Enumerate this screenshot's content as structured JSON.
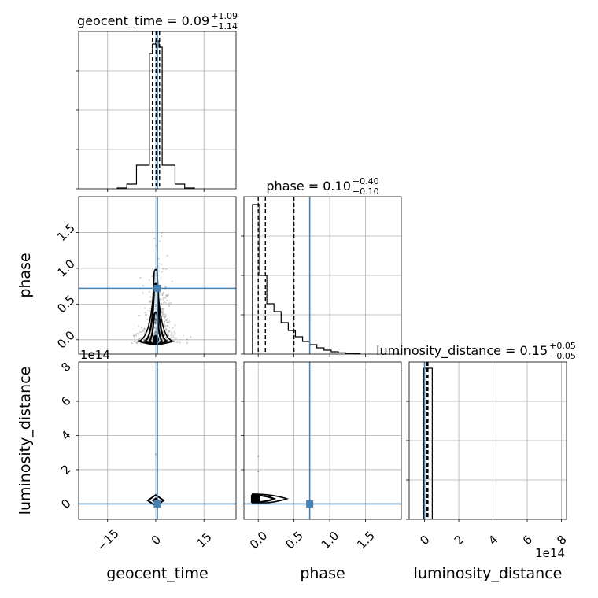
{
  "chart_data": {
    "type": "corner",
    "parameters": [
      "geocent_time",
      "phase",
      "luminosity_distance"
    ],
    "truth": {
      "geocent_time": 0.5,
      "phase": 0.72,
      "luminosity_distance": 0.0
    },
    "truth_color": "#4682b4",
    "grid": true,
    "offsets": {
      "luminosity_distance": "1e14"
    },
    "titles": [
      {
        "param": "geocent_time",
        "main": "geocent_time = 0.09",
        "plus": "+1.09",
        "minus": "−1.14"
      },
      {
        "param": "phase",
        "main": "phase = 0.10",
        "plus": "+0.40",
        "minus": "−0.10"
      },
      {
        "param": "luminosity_distance",
        "main": "luminosity_distance = 0.15",
        "plus": "+0.05",
        "minus": "−0.05"
      }
    ],
    "axes": {
      "geocent_time": {
        "label": "geocent_time",
        "range": [
          -24,
          25
        ],
        "ticks": [
          -15,
          0,
          15
        ],
        "tick_labels": [
          "−15",
          "0",
          "15"
        ]
      },
      "phase": {
        "label": "phase",
        "range": [
          -0.2,
          2.0
        ],
        "ticks": [
          0.0,
          0.5,
          1.0,
          1.5
        ],
        "tick_labels": [
          "0.0",
          "0.5",
          "1.0",
          "1.5"
        ]
      },
      "luminosity_distance": {
        "label": "luminosity_distance",
        "range": [
          -0.9,
          8.3
        ],
        "ticks": [
          0,
          2,
          4,
          6,
          8
        ],
        "tick_labels": [
          "0",
          "2",
          "4",
          "6",
          "8"
        ]
      }
    },
    "hist_geocent_time": {
      "edges": [
        -12,
        -9,
        -6,
        -4,
        -2,
        -1,
        0,
        1,
        2,
        4,
        6,
        9,
        12
      ],
      "counts": [
        0.005,
        0.03,
        0.15,
        0.15,
        0.86,
        0.92,
        0.94,
        0.9,
        0.15,
        0.15,
        0.03,
        0.005
      ],
      "quantiles": [
        -1.05,
        0.09,
        1.18
      ]
    },
    "hist_phase": {
      "edges": [
        -0.08,
        0.02,
        0.12,
        0.22,
        0.32,
        0.42,
        0.52,
        0.62,
        0.72,
        0.82,
        0.92,
        1.02,
        1.12,
        1.22,
        1.32,
        1.42
      ],
      "counts": [
        0.95,
        0.5,
        0.32,
        0.27,
        0.2,
        0.15,
        0.11,
        0.08,
        0.06,
        0.04,
        0.025,
        0.015,
        0.008,
        0.004,
        0.002
      ],
      "quantiles": [
        0.0,
        0.1,
        0.5
      ]
    },
    "hist_luminosity_distance": {
      "edges": [
        -0.05,
        0.45
      ],
      "counts": [
        0.96
      ],
      "quantiles": [
        0.1,
        0.15,
        0.2
      ]
    }
  }
}
